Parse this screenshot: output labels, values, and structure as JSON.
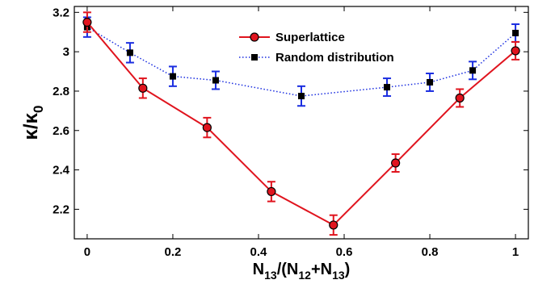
{
  "chart_data": {
    "type": "line",
    "xlabel": "N13/(N12+N13)",
    "ylabel": "κ/κ0",
    "xlim": [
      -0.03,
      1.03
    ],
    "ylim": [
      2.05,
      3.23
    ],
    "xticks": [
      0,
      0.2,
      0.4,
      0.6,
      0.8,
      1
    ],
    "xtick_labels": [
      "0",
      "0.2",
      "0.4",
      "0.6",
      "0.8",
      "1"
    ],
    "yticks": [
      2.2,
      2.4,
      2.6,
      2.8,
      3.0,
      3.2
    ],
    "ytick_labels": [
      "2.2",
      "2.4",
      "2.6",
      "2.8",
      "3",
      "3.2"
    ],
    "legend_position": "top-center",
    "series": [
      {
        "name": "Superlattice",
        "color": "#e0141e",
        "marker": "circle",
        "line_style": "solid",
        "x": [
          0,
          0.13,
          0.28,
          0.43,
          0.575,
          0.72,
          0.87,
          1
        ],
        "y": [
          3.15,
          2.815,
          2.615,
          2.29,
          2.12,
          2.435,
          2.765,
          3.005
        ],
        "err": [
          0.05,
          0.05,
          0.05,
          0.05,
          0.05,
          0.045,
          0.045,
          0.045
        ]
      },
      {
        "name": "Random distribution",
        "color": "#1a2de0",
        "marker": "square",
        "line_style": "dotted",
        "x": [
          0,
          0.1,
          0.2,
          0.3,
          0.5,
          0.7,
          0.8,
          0.9,
          1
        ],
        "y": [
          3.125,
          2.995,
          2.875,
          2.855,
          2.775,
          2.82,
          2.845,
          2.905,
          3.095
        ],
        "err": [
          0.05,
          0.05,
          0.05,
          0.045,
          0.05,
          0.045,
          0.045,
          0.045,
          0.045
        ]
      }
    ]
  }
}
